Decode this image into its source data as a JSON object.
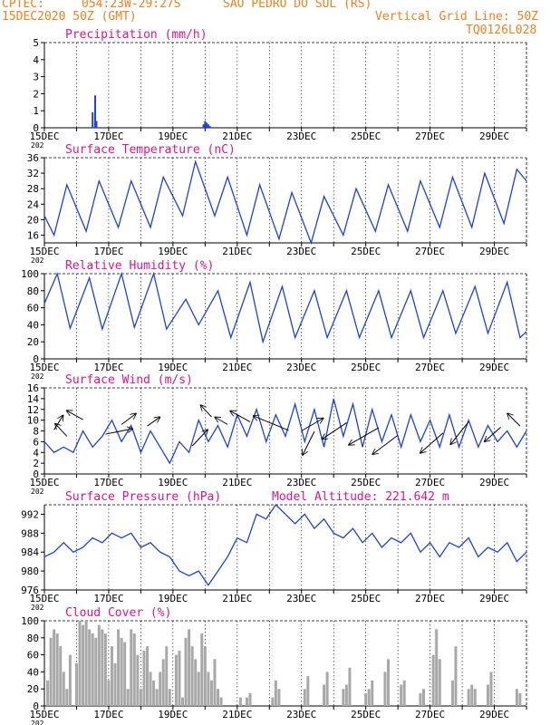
{
  "header": {
    "source": "CPTEC:",
    "coords": "054:23W-29:27S",
    "location": "SAO PEDRO DO SUL (RS)",
    "init": "15DEC2020 50Z (GMT)",
    "grid_line": "Vertical Grid Line: 50Z",
    "model": "TQ0126L028",
    "altitude": "Model Altitude: 221.642 m",
    "year_fragment": "202"
  },
  "colors": {
    "header": "#f08020",
    "title": "#e0148c",
    "series": "#1f3fe0",
    "cloud": "#a8a8a8",
    "arrow": "#000000"
  },
  "x_axis": {
    "ticks": [
      {
        "label": "15DEC",
        "day": 0
      },
      {
        "label": "17DEC",
        "day": 2
      },
      {
        "label": "19DEC",
        "day": 4
      },
      {
        "label": "21DEC",
        "day": 6
      },
      {
        "label": "23DEC",
        "day": 8
      },
      {
        "label": "25DEC",
        "day": 10
      },
      {
        "label": "27DEC",
        "day": 12
      },
      {
        "label": "29DEC",
        "day": 14
      }
    ],
    "range_days": [
      0,
      15
    ]
  },
  "chart_data": [
    {
      "id": "precip",
      "type": "bar",
      "title": "Precipitation (mm/h)",
      "ylim": [
        0,
        5
      ],
      "yticks": [
        0,
        1,
        2,
        3,
        4,
        5
      ],
      "x": [
        1.5,
        1.58,
        1.62,
        4.95,
        5.0,
        5.05,
        5.1,
        5.15
      ],
      "values": [
        0.9,
        1.9,
        0.4,
        0.2,
        0.4,
        0.3,
        0.2,
        0.1
      ]
    },
    {
      "id": "temp",
      "type": "line",
      "title": "Surface Temperature (nC)",
      "ylim": [
        14,
        36
      ],
      "yticks": [
        16,
        20,
        24,
        28,
        32,
        36
      ],
      "series": [
        {
          "x": [
            0.0,
            0.3,
            0.7,
            1.3,
            1.7,
            2.3,
            2.7,
            3.3,
            3.7,
            4.3,
            4.7,
            5.3,
            5.7,
            6.3,
            6.7,
            7.3,
            7.7,
            8.3,
            8.7,
            9.3,
            9.7,
            10.3,
            10.7,
            11.3,
            11.7,
            12.3,
            12.7,
            13.3,
            13.7,
            14.3,
            14.7,
            15.0
          ],
          "values": [
            21,
            16,
            29,
            17,
            30,
            18,
            30,
            18,
            31,
            21,
            35,
            21,
            31,
            16,
            29,
            15,
            27,
            14,
            26,
            16,
            28,
            17,
            29,
            17,
            30,
            18,
            31,
            18,
            32,
            19,
            33,
            30
          ]
        }
      ]
    },
    {
      "id": "rh",
      "type": "line",
      "title": "Relative Humidity (%)",
      "ylim": [
        0,
        100
      ],
      "yticks": [
        0,
        20,
        40,
        60,
        80,
        100
      ],
      "series": [
        {
          "x": [
            0.0,
            0.4,
            0.8,
            1.4,
            1.8,
            2.4,
            2.8,
            3.4,
            3.8,
            4.4,
            4.8,
            5.4,
            5.8,
            6.4,
            6.8,
            7.4,
            7.8,
            8.4,
            8.8,
            9.4,
            9.8,
            10.4,
            10.8,
            11.4,
            11.8,
            12.4,
            12.8,
            13.4,
            13.8,
            14.4,
            14.8,
            15.0
          ],
          "values": [
            65,
            100,
            36,
            95,
            35,
            100,
            37,
            100,
            35,
            70,
            40,
            80,
            25,
            90,
            20,
            85,
            25,
            80,
            25,
            80,
            25,
            80,
            25,
            80,
            25,
            80,
            30,
            85,
            30,
            90,
            25,
            32
          ]
        }
      ]
    },
    {
      "id": "wind",
      "type": "line",
      "title": "Surface Wind (m/s)",
      "ylim": [
        0,
        16
      ],
      "yticks": [
        0,
        2,
        4,
        6,
        8,
        10,
        12,
        14,
        16
      ],
      "series": [
        {
          "x": [
            0.0,
            0.3,
            0.6,
            0.9,
            1.2,
            1.5,
            1.8,
            2.1,
            2.4,
            2.7,
            3.0,
            3.3,
            3.6,
            3.9,
            4.2,
            4.5,
            4.8,
            5.1,
            5.4,
            5.7,
            6.0,
            6.3,
            6.6,
            6.9,
            7.2,
            7.5,
            7.8,
            8.1,
            8.4,
            8.7,
            9.0,
            9.3,
            9.6,
            9.9,
            10.2,
            10.5,
            10.8,
            11.1,
            11.4,
            11.7,
            12.0,
            12.3,
            12.6,
            12.9,
            13.2,
            13.5,
            13.8,
            14.1,
            14.4,
            14.7,
            15.0
          ],
          "values": [
            6,
            4,
            5,
            4,
            8,
            5,
            7,
            10,
            6,
            9,
            4,
            8,
            5,
            2,
            6,
            4,
            10,
            6,
            9,
            5,
            11,
            7,
            12,
            6,
            11,
            7,
            13,
            6,
            12,
            5,
            14,
            7,
            13,
            5,
            12,
            6,
            11,
            5,
            11,
            6,
            10,
            5,
            11,
            5,
            10,
            5,
            9,
            6,
            8,
            5,
            8
          ]
        }
      ],
      "arrows": [
        {
          "x": 0.3,
          "y": 8.2,
          "dx": 10,
          "dy": -16
        },
        {
          "x": 0.7,
          "y": 7.0,
          "dx": -13,
          "dy": -14
        },
        {
          "x": 1.2,
          "y": 10.1,
          "dx": -18,
          "dy": -10
        },
        {
          "x": 1.9,
          "y": 7.4,
          "dx": 30,
          "dy": -6
        },
        {
          "x": 2.4,
          "y": 9.2,
          "dx": 16,
          "dy": -12
        },
        {
          "x": 3.2,
          "y": 8.9,
          "dx": 14,
          "dy": -10
        },
        {
          "x": 4.6,
          "y": 5.2,
          "dx": 17,
          "dy": -18
        },
        {
          "x": 5.2,
          "y": 10.6,
          "dx": -12,
          "dy": -13
        },
        {
          "x": 5.7,
          "y": 9.2,
          "dx": -14,
          "dy": -8
        },
        {
          "x": 6.4,
          "y": 9.7,
          "dx": -22,
          "dy": -12
        },
        {
          "x": 7.6,
          "y": 8.1,
          "dx": -39,
          "dy": -16
        },
        {
          "x": 8.0,
          "y": 8.0,
          "dx": 24,
          "dy": -14
        },
        {
          "x": 8.4,
          "y": 7.9,
          "dx": -13,
          "dy": 26
        },
        {
          "x": 9.4,
          "y": 9.5,
          "dx": -27,
          "dy": 18
        },
        {
          "x": 10.4,
          "y": 8.6,
          "dx": -33,
          "dy": 19
        },
        {
          "x": 11.0,
          "y": 7.2,
          "dx": -28,
          "dy": 21
        },
        {
          "x": 12.4,
          "y": 7.6,
          "dx": -25,
          "dy": 22
        },
        {
          "x": 13.2,
          "y": 9.7,
          "dx": -20,
          "dy": 25
        },
        {
          "x": 14.2,
          "y": 8.7,
          "dx": -18,
          "dy": 16
        },
        {
          "x": 14.8,
          "y": 8.9,
          "dx": -14,
          "dy": -14
        }
      ]
    },
    {
      "id": "pres",
      "type": "line",
      "title": "Surface Pressure (hPa)",
      "ylim": [
        976,
        994
      ],
      "yticks": [
        976,
        980,
        984,
        988,
        992
      ],
      "series": [
        {
          "x": [
            0.0,
            0.3,
            0.6,
            0.9,
            1.2,
            1.5,
            1.8,
            2.1,
            2.4,
            2.7,
            3.0,
            3.3,
            3.6,
            3.9,
            4.2,
            4.5,
            4.8,
            5.1,
            5.4,
            5.7,
            6.0,
            6.3,
            6.6,
            6.9,
            7.2,
            7.5,
            7.8,
            8.1,
            8.4,
            8.7,
            9.0,
            9.3,
            9.6,
            9.9,
            10.2,
            10.5,
            10.8,
            11.1,
            11.4,
            11.7,
            12.0,
            12.3,
            12.6,
            12.9,
            13.2,
            13.5,
            13.8,
            14.1,
            14.4,
            14.7,
            15.0
          ],
          "values": [
            983,
            984,
            986,
            984,
            985,
            987,
            986,
            988,
            987,
            988,
            985,
            986,
            984,
            983,
            980,
            979,
            980,
            977,
            980,
            983,
            987,
            986,
            992,
            991,
            994,
            992,
            990,
            992,
            989,
            991,
            988,
            987,
            989,
            986,
            988,
            985,
            987,
            986,
            988,
            984,
            986,
            983,
            986,
            985,
            987,
            983,
            985,
            984,
            986,
            982,
            984
          ]
        }
      ]
    },
    {
      "id": "cloud",
      "type": "bar",
      "title": "Cloud Cover (%)",
      "ylim": [
        0,
        100
      ],
      "yticks": [
        0,
        20,
        40,
        60,
        80,
        100
      ],
      "x": [
        0.1,
        0.2,
        0.3,
        0.4,
        0.5,
        0.6,
        0.7,
        0.8,
        1.0,
        1.1,
        1.2,
        1.3,
        1.4,
        1.5,
        1.6,
        1.7,
        1.8,
        1.9,
        2.0,
        2.1,
        2.2,
        2.3,
        2.4,
        2.5,
        2.6,
        2.7,
        2.8,
        2.9,
        3.0,
        3.1,
        3.2,
        3.3,
        3.4,
        3.5,
        3.6,
        3.7,
        3.8,
        3.9,
        4.1,
        4.2,
        4.3,
        4.4,
        4.5,
        4.6,
        4.7,
        4.8,
        4.9,
        5.0,
        5.1,
        5.2,
        5.3,
        5.4,
        5.5,
        6.1,
        6.3,
        6.4,
        7.1,
        7.2,
        7.3,
        8.1,
        8.2,
        8.7,
        8.8,
        9.3,
        9.4,
        9.5,
        10.0,
        10.1,
        10.2,
        10.6,
        10.7,
        11.1,
        11.2,
        11.7,
        11.8,
        12.1,
        12.2,
        12.3,
        12.7,
        12.8,
        13.2,
        13.3,
        13.4,
        13.8,
        13.9,
        14.7,
        14.8
      ],
      "values": [
        30,
        80,
        90,
        85,
        70,
        40,
        20,
        60,
        50,
        100,
        95,
        100,
        90,
        85,
        80,
        95,
        90,
        85,
        30,
        70,
        50,
        90,
        80,
        75,
        20,
        90,
        85,
        60,
        20,
        65,
        70,
        40,
        30,
        20,
        40,
        55,
        70,
        20,
        60,
        65,
        10,
        80,
        90,
        70,
        55,
        40,
        85,
        70,
        40,
        30,
        55,
        20,
        10,
        10,
        10,
        15,
        10,
        30,
        20,
        20,
        35,
        25,
        40,
        20,
        25,
        45,
        15,
        20,
        30,
        40,
        55,
        25,
        30,
        15,
        20,
        60,
        90,
        55,
        30,
        70,
        20,
        25,
        20,
        25,
        40,
        20,
        15
      ]
    }
  ]
}
